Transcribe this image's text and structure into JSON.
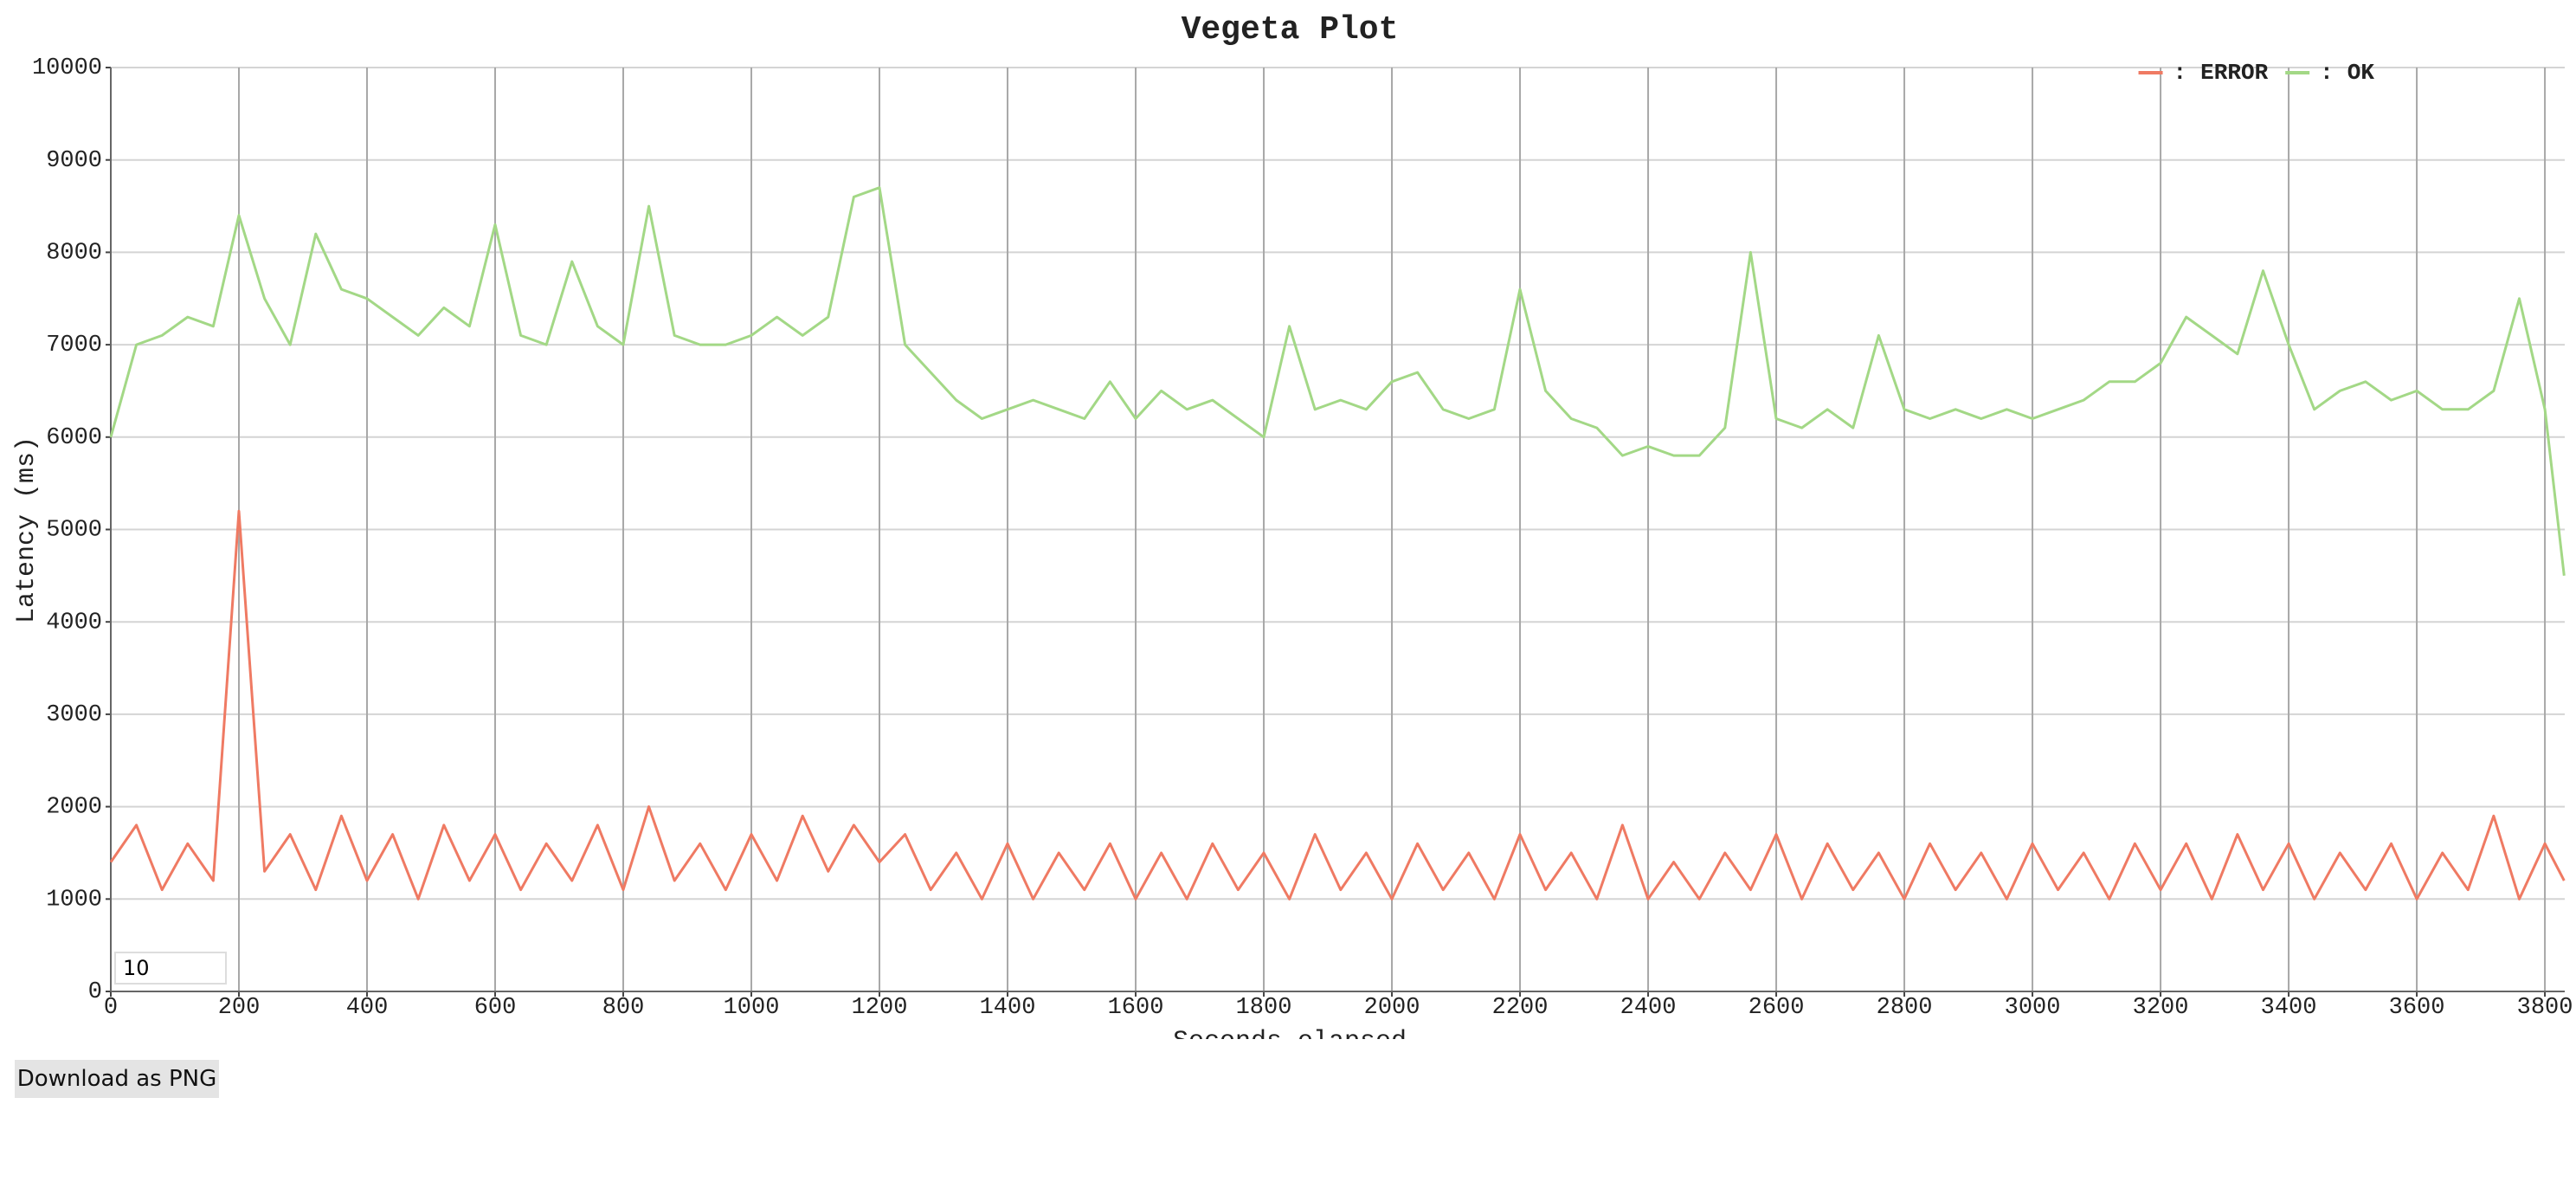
{
  "chart_data": {
    "type": "line",
    "title": "Vegeta Plot",
    "x_label": "Seconds elapsed",
    "y_label": "Latency (ms)",
    "legend_separator": ":",
    "legend_position": "top-right",
    "grid": true,
    "xlim": [
      0,
      3831
    ],
    "ylim": [
      0,
      10000
    ],
    "xticks": [
      0,
      200,
      400,
      600,
      800,
      1000,
      1200,
      1400,
      1600,
      1800,
      2000,
      2200,
      2400,
      2600,
      2800,
      3000,
      3200,
      3400,
      3600,
      3800
    ],
    "yticks": [
      0,
      1000,
      2000,
      3000,
      4000,
      5000,
      6000,
      7000,
      8000,
      9000,
      10000
    ],
    "x": [
      0,
      40,
      80,
      120,
      160,
      200,
      240,
      280,
      320,
      360,
      400,
      440,
      480,
      520,
      560,
      600,
      640,
      680,
      720,
      760,
      800,
      840,
      880,
      920,
      960,
      1000,
      1040,
      1080,
      1120,
      1160,
      1200,
      1240,
      1280,
      1320,
      1360,
      1400,
      1440,
      1480,
      1520,
      1560,
      1600,
      1640,
      1680,
      1720,
      1760,
      1800,
      1840,
      1880,
      1920,
      1960,
      2000,
      2040,
      2080,
      2120,
      2160,
      2200,
      2240,
      2280,
      2320,
      2360,
      2400,
      2440,
      2480,
      2520,
      2560,
      2600,
      2640,
      2680,
      2720,
      2760,
      2800,
      2840,
      2880,
      2920,
      2960,
      3000,
      3040,
      3080,
      3120,
      3160,
      3200,
      3240,
      3280,
      3320,
      3360,
      3400,
      3440,
      3480,
      3520,
      3560,
      3600,
      3640,
      3680,
      3720,
      3760,
      3800,
      3830
    ],
    "series": [
      {
        "name": "ERROR",
        "color": "#ef7a63",
        "values": [
          1400,
          1800,
          1100,
          1600,
          1200,
          5200,
          1300,
          1700,
          1100,
          1900,
          1200,
          1700,
          1000,
          1800,
          1200,
          1700,
          1100,
          1600,
          1200,
          1800,
          1100,
          2000,
          1200,
          1600,
          1100,
          1700,
          1200,
          1900,
          1300,
          1800,
          1400,
          1700,
          1100,
          1500,
          1000,
          1600,
          1000,
          1500,
          1100,
          1600,
          1000,
          1500,
          1000,
          1600,
          1100,
          1500,
          1000,
          1700,
          1100,
          1500,
          1000,
          1600,
          1100,
          1500,
          1000,
          1700,
          1100,
          1500,
          1000,
          1800,
          1000,
          1400,
          1000,
          1500,
          1100,
          1700,
          1000,
          1600,
          1100,
          1500,
          1000,
          1600,
          1100,
          1500,
          1000,
          1600,
          1100,
          1500,
          1000,
          1600,
          1100,
          1600,
          1000,
          1700,
          1100,
          1600,
          1000,
          1500,
          1100,
          1600,
          1000,
          1500,
          1100,
          1900,
          1000,
          1600,
          1200
        ]
      },
      {
        "name": "OK",
        "color": "#a3d886",
        "values": [
          6000,
          7000,
          7100,
          7300,
          7200,
          8400,
          7500,
          7000,
          8200,
          7600,
          7500,
          7300,
          7100,
          7400,
          7200,
          8300,
          7100,
          7000,
          7900,
          7200,
          7000,
          8500,
          7100,
          7000,
          7000,
          7100,
          7300,
          7100,
          7300,
          8600,
          8700,
          7000,
          6700,
          6400,
          6200,
          6300,
          6400,
          6300,
          6200,
          6600,
          6200,
          6500,
          6300,
          6400,
          6200,
          6000,
          7200,
          6300,
          6400,
          6300,
          6600,
          6700,
          6300,
          6200,
          6300,
          7600,
          6500,
          6200,
          6100,
          5800,
          5900,
          5800,
          5800,
          6100,
          8000,
          6200,
          6100,
          6300,
          6100,
          7100,
          6300,
          6200,
          6300,
          6200,
          6300,
          6200,
          6300,
          6400,
          6600,
          6600,
          6800,
          7300,
          7100,
          6900,
          7800,
          7000,
          6300,
          6500,
          6600,
          6400,
          6500,
          6300,
          6300,
          6500,
          7500,
          6300,
          4500
        ]
      }
    ]
  },
  "controls": {
    "roll_period": "10",
    "download_button": "Download as PNG"
  }
}
